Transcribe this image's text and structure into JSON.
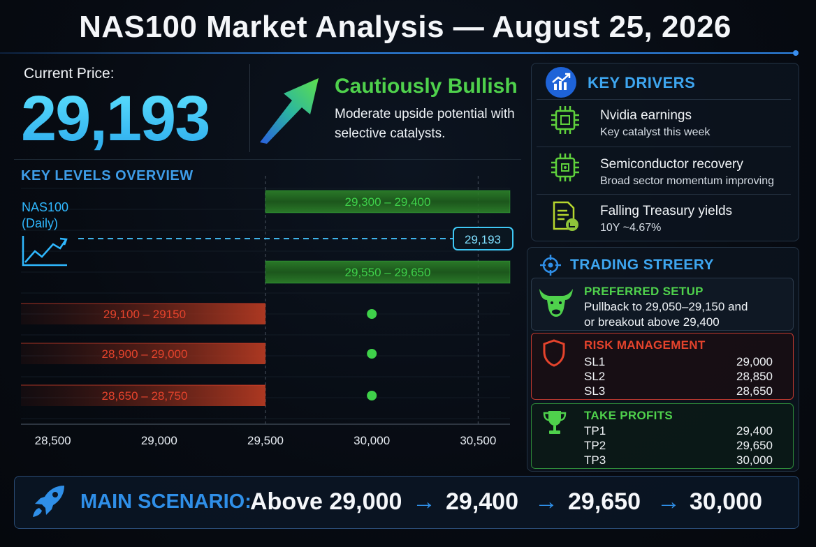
{
  "header": {
    "title": "NAS100 Market Analysis — August 25, 2026"
  },
  "price": {
    "label": "Current Price:",
    "value": "29,193"
  },
  "outlook": {
    "bias": "Cautiously Bullish",
    "description": "Moderate upside potential with selective catalysts."
  },
  "key_levels": {
    "title": "KEY LEVELS OVERVIEW",
    "instrument": "NAS100",
    "timeframe": "(Daily)"
  },
  "chart_data": {
    "type": "bar",
    "x_ticks": [
      "28,500",
      "29,000",
      "29,500",
      "30,000",
      "30,500"
    ],
    "x_tick_values": [
      28500,
      29000,
      29500,
      30000,
      30500
    ],
    "xlim": [
      28350,
      30650
    ],
    "current_price": {
      "value": 29193,
      "label": "29,193"
    },
    "resistance_zones": [
      {
        "label": "29,300 – 29,400",
        "low": 29300,
        "high": 29400
      },
      {
        "label": "29,550 – 29,650",
        "low": 29550,
        "high": 29650
      }
    ],
    "support_zones": [
      {
        "label": "29,100 – 29150",
        "low": 29100,
        "high": 29150
      },
      {
        "label": "28,900 – 29,000",
        "low": 28900,
        "high": 29000
      },
      {
        "label": "28,650 – 28,750",
        "low": 28650,
        "high": 28750
      }
    ],
    "markers_x": 30000,
    "colors": {
      "resistance": "#3fd14a",
      "support": "#e5432c",
      "price": "#3fb4ea",
      "marker": "#3fd14a"
    }
  },
  "drivers": {
    "title": "KEY DRIVERS",
    "items": [
      {
        "icon": "chip-icon",
        "title": "Nvidia earnings",
        "subtitle": "Key catalyst this week"
      },
      {
        "icon": "processor-icon",
        "title": "Semiconductor recovery",
        "subtitle": "Broad sector momentum improving"
      },
      {
        "icon": "document-chart-icon",
        "title": "Falling Treasury yields",
        "subtitle": "10Y ~4.67%"
      }
    ]
  },
  "strategy": {
    "title": "TRADING STREERY",
    "setup": {
      "title": "PREFERRED SETUP",
      "line1": "Pullback to 29,050–29,150 and",
      "line2": "or breakout above 29,400"
    },
    "risk": {
      "title": "RISK MANAGEMENT",
      "rows": [
        {
          "k": "SL1",
          "v": "29,000"
        },
        {
          "k": "SL2",
          "v": "28,850"
        },
        {
          "k": "SL3",
          "v": "28,650"
        }
      ]
    },
    "profits": {
      "title": "TAKE PROFITS",
      "rows": [
        {
          "k": "TP1",
          "v": "29,400"
        },
        {
          "k": "TP2",
          "v": "29,650"
        },
        {
          "k": "TP3",
          "v": "30,000"
        }
      ]
    }
  },
  "scenario": {
    "label": "MAIN SCENARIO:",
    "steps": [
      "Above 29,000",
      "29,400",
      "29,650",
      "30,000"
    ],
    "arrow": "→"
  },
  "colors": {
    "accent_blue": "#2f8fe8",
    "bullish_green": "#4fd14c",
    "risk_red": "#e5432c",
    "price_cyan": "#3fc8f5"
  }
}
